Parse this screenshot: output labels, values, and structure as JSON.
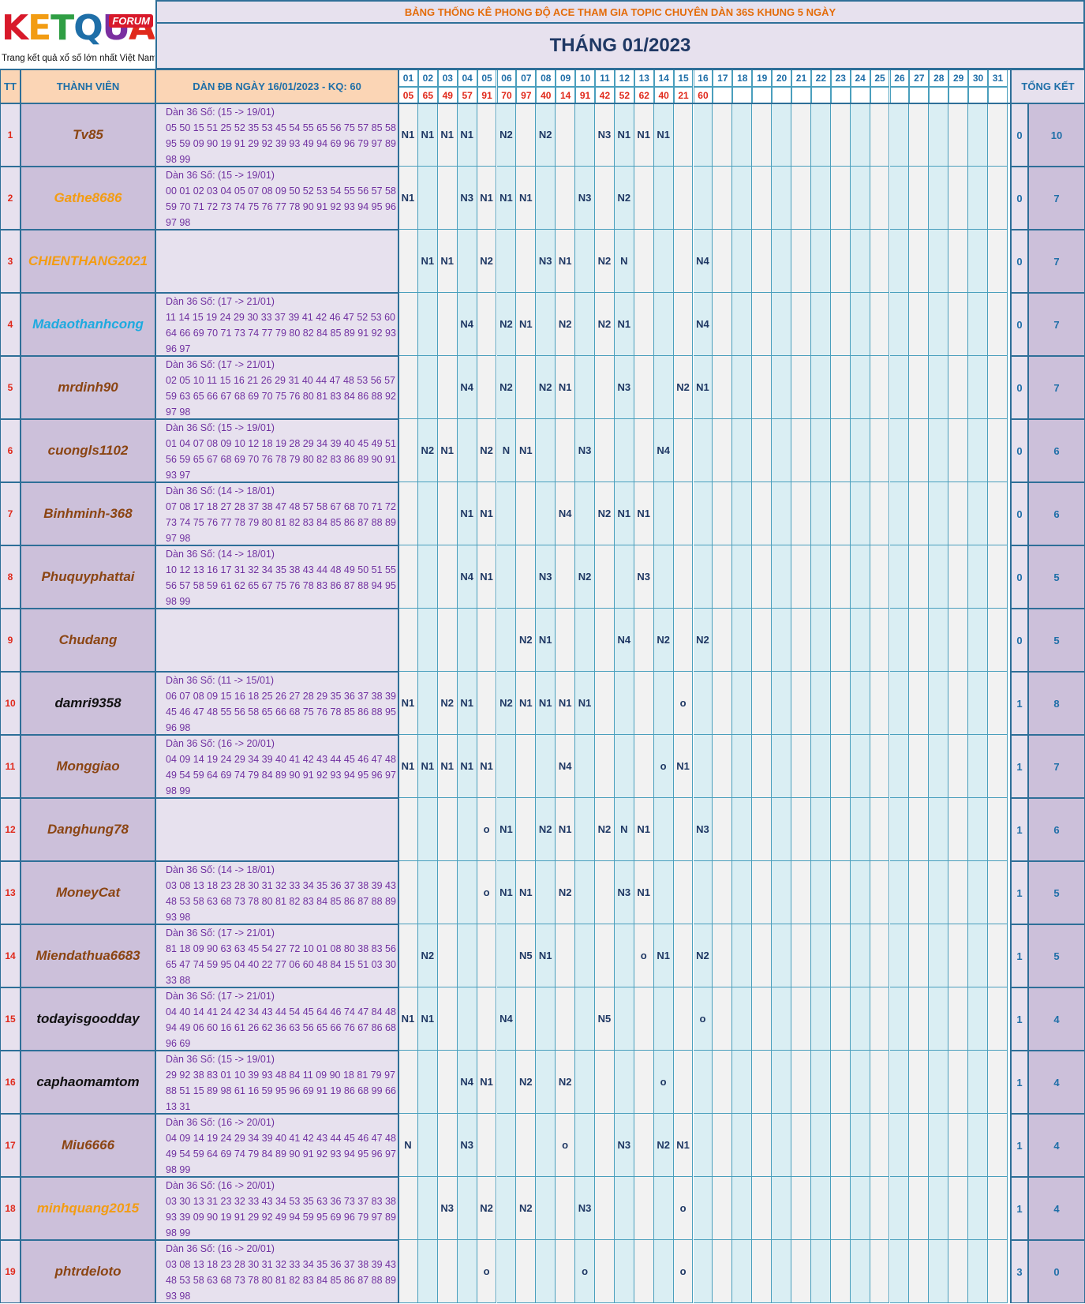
{
  "logo": {
    "brand": "KETQUA2",
    "forum": "FORUM",
    "tagline": "Trang kết quả xổ số lớn nhất Việt Nam"
  },
  "header": {
    "title": "BẢNG THỐNG KÊ PHONG ĐỘ ACE THAM GIA TOPIC CHUYÊN DÀN 36S KHUNG 5 NGÀY",
    "month": "THÁNG 01/2023",
    "col_tt": "TT",
    "col_member": "THÀNH VIÊN",
    "col_dan": "DÀN ĐB NGÀY 16/01/2023 - KQ: 60",
    "col_total": "TỔNG KẾT"
  },
  "days": [
    "01",
    "02",
    "03",
    "04",
    "05",
    "06",
    "07",
    "08",
    "09",
    "10",
    "11",
    "12",
    "13",
    "14",
    "15",
    "16",
    "17",
    "18",
    "19",
    "20",
    "21",
    "22",
    "23",
    "24",
    "25",
    "26",
    "27",
    "28",
    "29",
    "30",
    "31"
  ],
  "results": [
    "05",
    "65",
    "49",
    "57",
    "91",
    "70",
    "97",
    "40",
    "14",
    "91",
    "42",
    "52",
    "62",
    "40",
    "21",
    "60",
    "",
    "",
    "",
    "",
    "",
    "",
    "",
    "",
    "",
    "",
    "",
    "",
    "",
    "",
    ""
  ],
  "colors": {
    "brown": "#8b4513",
    "orange": "#f39c12",
    "cyan": "#1eaadf",
    "black": "#111111"
  },
  "rows": [
    {
      "tt": "1",
      "name": "Tv85",
      "color": "brown",
      "dan": "Dàn 36 Số: (15 -> 19/01)\n05 50 15 51 25 52 35 53 45 54 55 65 56 75 57 85 58\n95 59 09 90 19 91 29 92 39 93 49 94 69 96 79 97 89\n98 99",
      "marks": {
        "01": "N1",
        "02": "N1",
        "03": "N1",
        "04": "N1",
        "06": "N2",
        "08": "N2",
        "11": "N3",
        "12": "N1",
        "13": "N1",
        "14": "N1"
      },
      "t1": "0",
      "t2": "10"
    },
    {
      "tt": "2",
      "name": "Gathe8686",
      "color": "orange",
      "dan": "Dàn 36 Số: (15 -> 19/01)\n00 01 02 03 04 05 07 08 09 50 52 53 54 55 56 57 58\n59 70 71 72 73 74 75 76 77 78 90 91 92 93 94 95 96\n97 98",
      "marks": {
        "01": "N1",
        "04": "N3",
        "05": "N1",
        "06": "N1",
        "07": "N1",
        "10": "N3",
        "12": "N2"
      },
      "t1": "0",
      "t2": "7"
    },
    {
      "tt": "3",
      "name": "CHIENTHANG2021",
      "color": "orange",
      "dan": "",
      "marks": {
        "02": "N1",
        "03": "N1",
        "05": "N2",
        "08": "N3",
        "09": "N1",
        "11": "N2",
        "12": "N",
        "16": "N4"
      },
      "t1": "0",
      "t2": "7"
    },
    {
      "tt": "4",
      "name": "Madaothanhcong",
      "color": "cyan",
      "dan": "Dàn 36 Số: (17 -> 21/01)\n11 14 15 19 24 29 30 33 37 39 41 42 46 47 52 53 60\n64 66 69 70 71 73 74 77 79 80 82 84 85 89 91 92 93\n96 97",
      "marks": {
        "04": "N4",
        "06": "N2",
        "07": "N1",
        "09": "N2",
        "11": "N2",
        "12": "N1",
        "16": "N4"
      },
      "t1": "0",
      "t2": "7"
    },
    {
      "tt": "5",
      "name": "mrdinh90",
      "color": "brown",
      "dan": "Dàn 36 Số: (17 -> 21/01)\n02 05 10 11 15 16 21 26 29 31 40 44 47 48 53 56 57\n59 63 65 66 67 68 69 70 75 76 80 81 83 84 86 88 92\n97 98",
      "marks": {
        "04": "N4",
        "06": "N2",
        "08": "N2",
        "09": "N1",
        "12": "N3",
        "15": "N2",
        "16": "N1"
      },
      "t1": "0",
      "t2": "7"
    },
    {
      "tt": "6",
      "name": "cuongls1102",
      "color": "brown",
      "dan": "Dàn 36 Số: (15 -> 19/01)\n01 04 07 08 09 10 12 18 19 28 29 34 39 40 45 49 51\n56 59 65 67 68 69 70 76 78 79 80 82 83 86 89 90 91\n93 97",
      "marks": {
        "02": "N2",
        "03": "N1",
        "05": "N2",
        "06": "N",
        "07": "N1",
        "10": "N3",
        "14": "N4"
      },
      "t1": "0",
      "t2": "6"
    },
    {
      "tt": "7",
      "name": "Binhminh-368",
      "color": "brown",
      "dan": "Dàn 36 Số: (14 -> 18/01)\n07 08 17 18 27 28 37 38 47 48 57 58 67 68 70 71 72\n73 74 75 76 77 78 79 80 81 82 83 84 85 86 87 88 89\n97 98",
      "marks": {
        "04": "N1",
        "05": "N1",
        "09": "N4",
        "11": "N2",
        "12": "N1",
        "13": "N1"
      },
      "t1": "0",
      "t2": "6"
    },
    {
      "tt": "8",
      "name": "Phuquyphattai",
      "color": "brown",
      "dan": "Dàn 36 Số: (14 -> 18/01)\n10 12 13 16 17 31 32 34 35 38 43 44 48 49 50 51 55\n56 57 58 59 61 62 65 67 75 76 78 83 86 87 88 94 95\n98 99",
      "marks": {
        "04": "N4",
        "05": "N1",
        "08": "N3",
        "10": "N2",
        "13": "N3"
      },
      "t1": "0",
      "t2": "5"
    },
    {
      "tt": "9",
      "name": "Chudang",
      "color": "brown",
      "dan": "",
      "marks": {
        "07": "N2",
        "08": "N1",
        "12": "N4",
        "14": "N2",
        "16": "N2"
      },
      "t1": "0",
      "t2": "5"
    },
    {
      "tt": "10",
      "name": "damri9358",
      "color": "black",
      "dan": "Dàn 36 Số: (11 -> 15/01)\n06 07 08 09 15 16 18 25 26 27 28 29 35 36 37 38 39\n45 46 47 48 55 56 58 65 66 68 75 76 78 85 86 88 95\n96 98",
      "marks": {
        "01": "N1",
        "03": "N2",
        "04": "N1",
        "06": "N2",
        "07": "N1",
        "08": "N1",
        "09": "N1",
        "10": "N1",
        "15": "o"
      },
      "t1": "1",
      "t2": "8"
    },
    {
      "tt": "11",
      "name": "Monggiao",
      "color": "brown",
      "dan": "Dàn 36 Số: (16 -> 20/01)\n04 09 14 19 24 29 34 39 40 41 42 43 44 45 46 47 48\n49 54 59 64 69 74 79 84 89 90 91 92 93 94 95 96 97\n98 99",
      "marks": {
        "01": "N1",
        "02": "N1",
        "03": "N1",
        "04": "N1",
        "05": "N1",
        "09": "N4",
        "14": "o",
        "15": "N1"
      },
      "t1": "1",
      "t2": "7"
    },
    {
      "tt": "12",
      "name": "Danghung78",
      "color": "brown",
      "dan": "",
      "marks": {
        "05": "o",
        "06": "N1",
        "08": "N2",
        "09": "N1",
        "11": "N2",
        "12": "N",
        "13": "N1",
        "16": "N3"
      },
      "t1": "1",
      "t2": "6"
    },
    {
      "tt": "13",
      "name": "MoneyCat",
      "color": "brown",
      "dan": "Dàn 36 Số: (14 -> 18/01)\n03 08 13 18 23 28 30 31 32 33 34 35 36 37 38 39 43\n48 53 58 63 68 73 78 80 81 82 83 84 85 86 87 88 89\n93 98",
      "marks": {
        "05": "o",
        "06": "N1",
        "07": "N1",
        "09": "N2",
        "12": "N3",
        "13": "N1"
      },
      "t1": "1",
      "t2": "5"
    },
    {
      "tt": "14",
      "name": "Miendathua6683",
      "color": "brown",
      "dan": "Dàn 36 Số: (17 -> 21/01)\n81 18 09 90 63 63 45 54 27 72 10 01 08 80 38 83 56\n65 47 74 59 95 04 40 22 77 06 60 48 84 15 51 03 30\n33 88",
      "marks": {
        "02": "N2",
        "07": "N5",
        "08": "N1",
        "13": "o",
        "14": "N1",
        "16": "N2"
      },
      "t1": "1",
      "t2": "5"
    },
    {
      "tt": "15",
      "name": "todayisgoodday",
      "color": "black",
      "dan": "Dàn 36 Số: (17 -> 21/01)\n04 40 14 41 24 42 34 43 44 54 45 64 46 74 47 84 48\n94 49 06 60 16 61 26 62 36 63 56 65 66 76 67 86 68\n96 69",
      "marks": {
        "01": "N1",
        "02": "N1",
        "06": "N4",
        "11": "N5",
        "16": "o"
      },
      "t1": "1",
      "t2": "4"
    },
    {
      "tt": "16",
      "name": "caphaomamtom",
      "color": "black",
      "dan": "Dàn 36 Số: (15 -> 19/01)\n29 92 38 83 01 10 39 93 48 84 11 09 90 18 81 79 97\n88 51 15 89 98 61 16 59 95 96 69 91 19 86 68 99 66\n13 31",
      "marks": {
        "04": "N4",
        "05": "N1",
        "07": "N2",
        "09": "N2",
        "14": "o"
      },
      "t1": "1",
      "t2": "4"
    },
    {
      "tt": "17",
      "name": "Miu6666",
      "color": "brown",
      "dan": "Dàn 36 Số: (16 -> 20/01)\n04 09 14 19 24 29 34 39 40 41 42 43 44 45 46 47 48\n49 54 59 64 69 74 79 84 89 90 91 92 93 94 95 96 97\n98 99",
      "marks": {
        "01": "N",
        "04": "N3",
        "09": "o",
        "12": "N3",
        "14": "N2",
        "15": "N1"
      },
      "t1": "1",
      "t2": "4"
    },
    {
      "tt": "18",
      "name": "minhquang2015",
      "color": "orange",
      "dan": "Dàn 36 Số: (16 -> 20/01)\n03 30 13 31 23 32 33 43 34 53 35 63 36 73 37 83 38\n93 39 09 90 19 91 29 92 49 94 59 95 69 96 79 97 89\n98 99",
      "marks": {
        "03": "N3",
        "05": "N2",
        "07": "N2",
        "10": "N3",
        "15": "o"
      },
      "t1": "1",
      "t2": "4"
    },
    {
      "tt": "19",
      "name": "phtrdeloto",
      "color": "brown",
      "dan": "Dàn 36 Số: (16 -> 20/01)\n03 08 13 18 23 28 30 31 32 33 34 35 36 37 38 39 43\n48 53 58 63 68 73 78 80 81 82 83 84 85 86 87 88 89\n93 98",
      "marks": {
        "05": "o",
        "10": "o",
        "15": "o"
      },
      "t1": "3",
      "t2": "0"
    }
  ]
}
